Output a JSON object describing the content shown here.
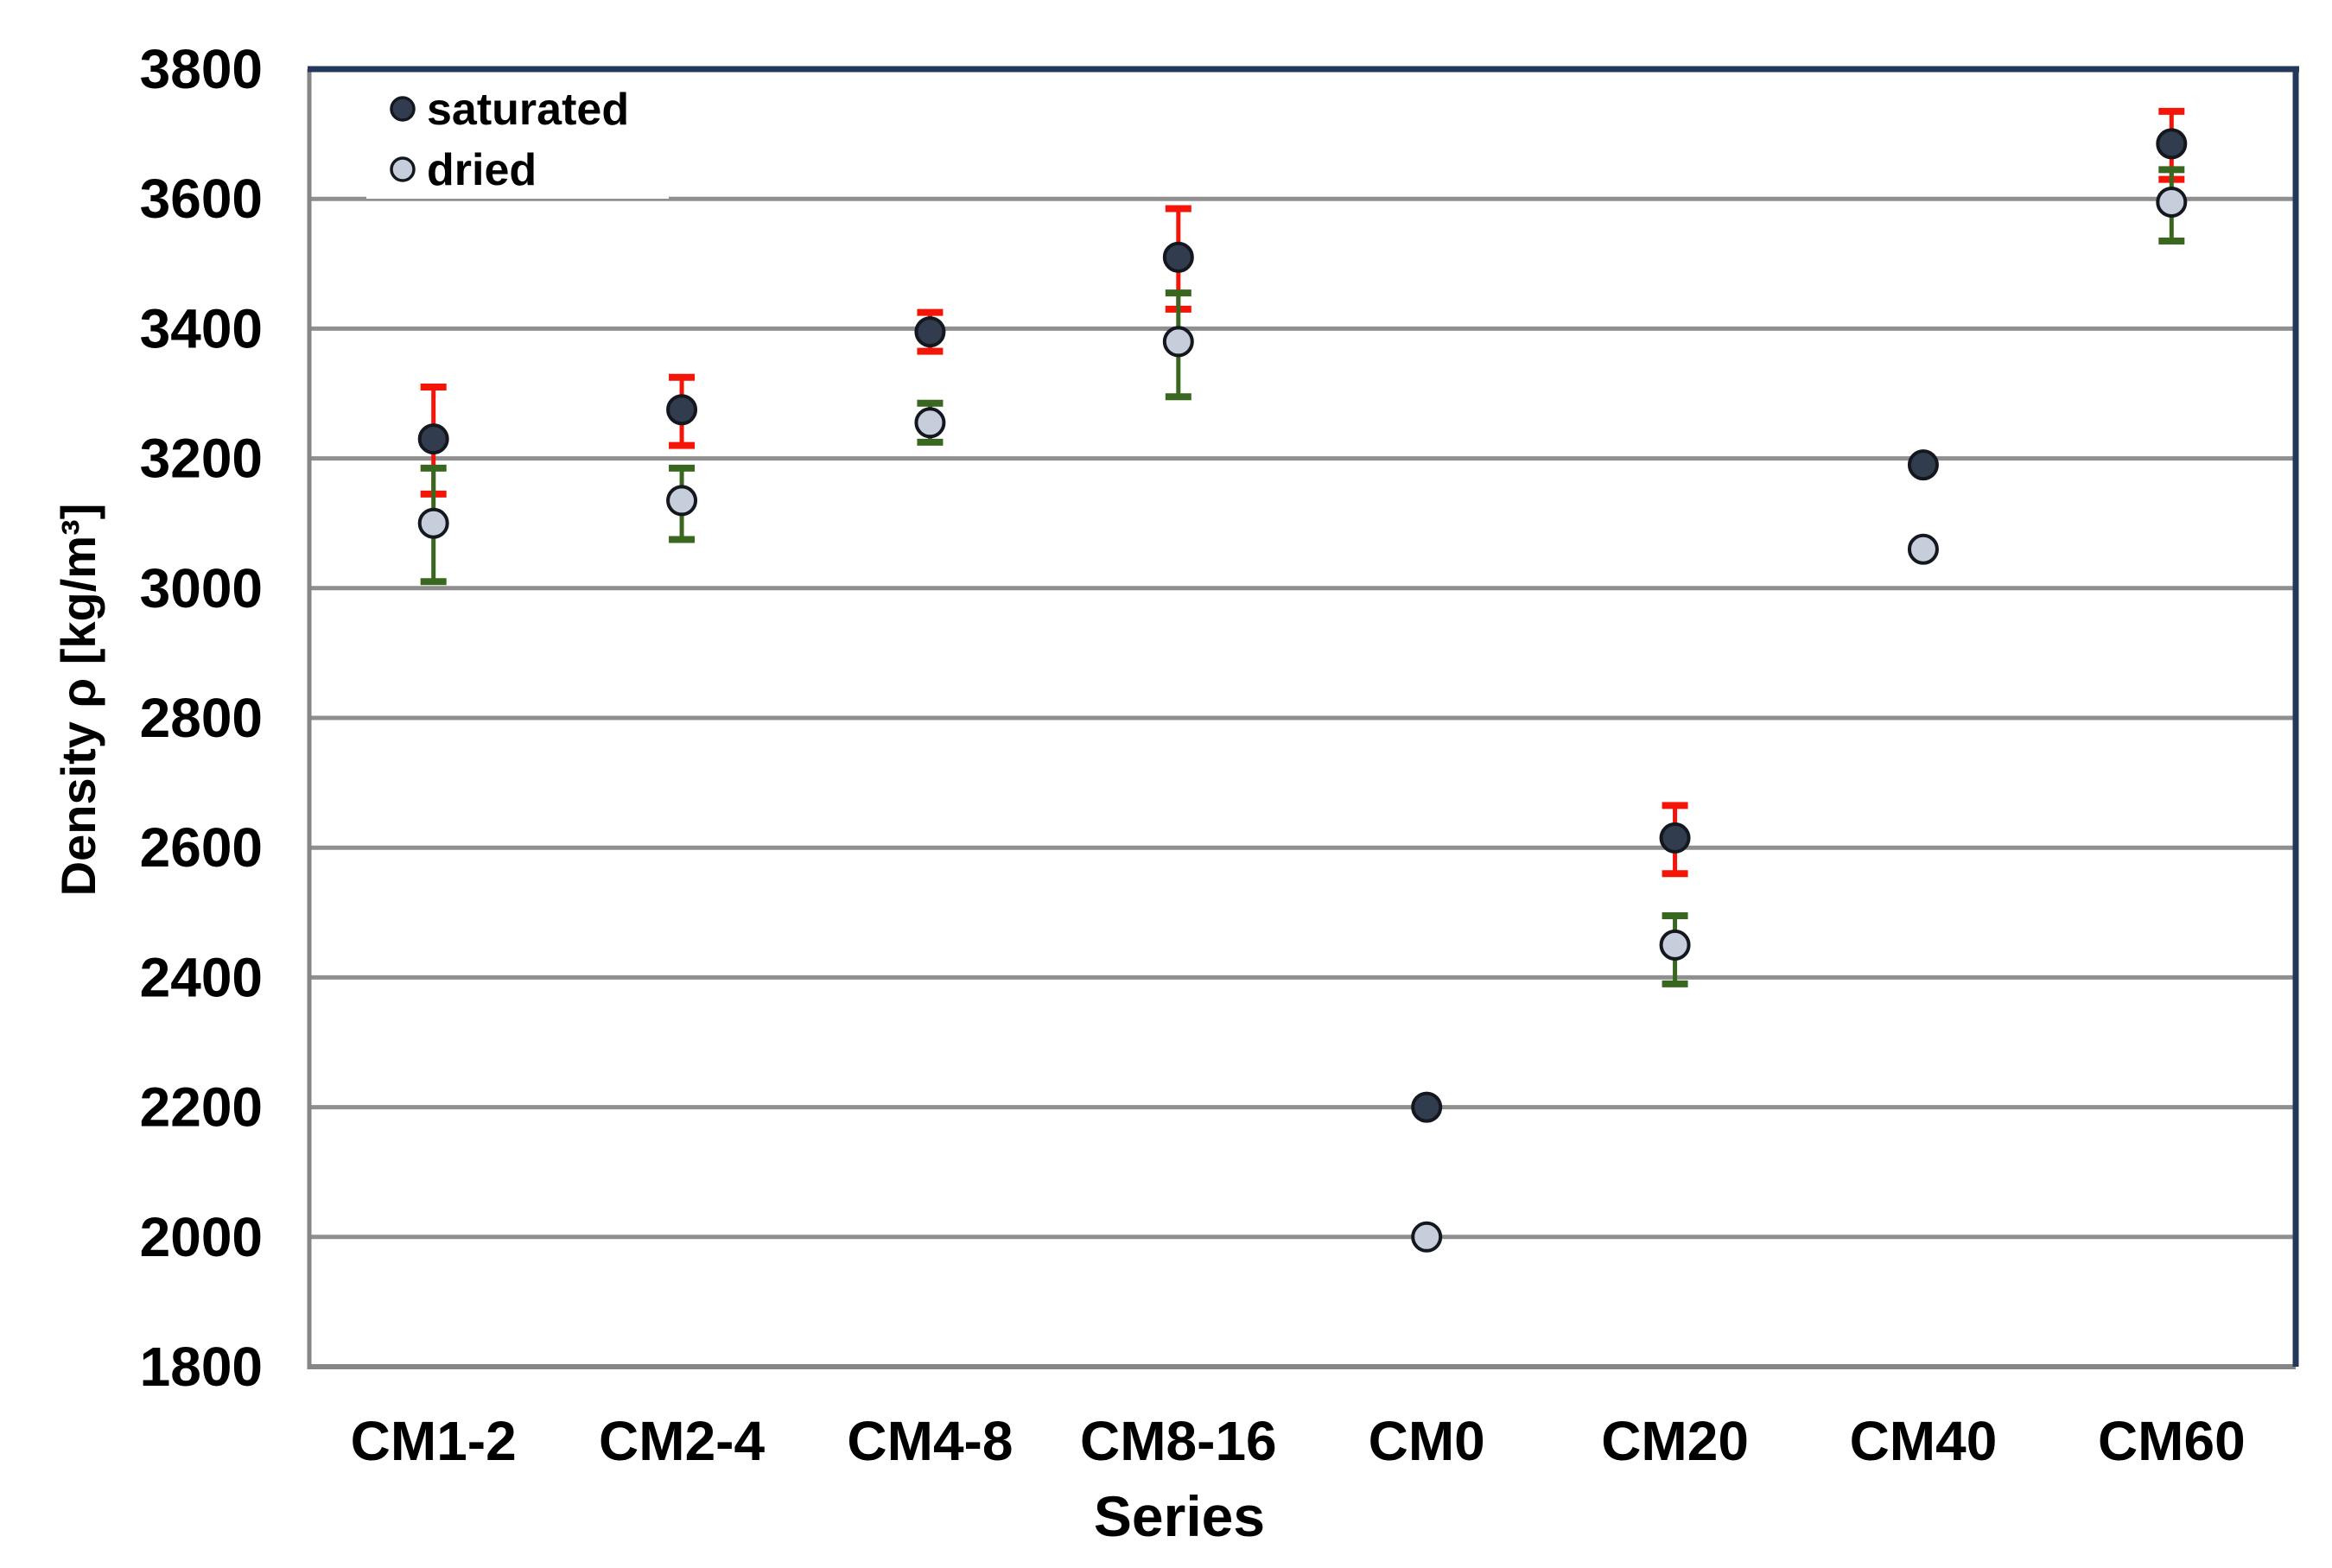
{
  "chart_data": {
    "type": "scatter",
    "title": "",
    "xlabel": "Series",
    "ylabel": "Density ρ [kg/m³]",
    "ylim": [
      1800,
      3800
    ],
    "ytick_step": 200,
    "yticks": [
      1800,
      2000,
      2200,
      2400,
      2600,
      2800,
      3000,
      3200,
      3400,
      3600,
      3800
    ],
    "grid": true,
    "legend_position": "top-left-inside",
    "categories": [
      "CM1-2",
      "CM2-4",
      "CM4-8",
      "CM8-16",
      "CM0",
      "CM20",
      "CM40",
      "CM60"
    ],
    "series": [
      {
        "name": "saturated",
        "marker": "circle",
        "marker_fill": "#313D4E",
        "error_color": "#F51508",
        "points": [
          {
            "category": "CM1-2",
            "value": 3230,
            "err_plus": 80,
            "err_minus": 85
          },
          {
            "category": "CM2-4",
            "value": 3275,
            "err_plus": 50,
            "err_minus": 55
          },
          {
            "category": "CM4-8",
            "value": 3395,
            "err_plus": 30,
            "err_minus": 30
          },
          {
            "category": "CM8-16",
            "value": 3510,
            "err_plus": 75,
            "err_minus": 80
          },
          {
            "category": "CM0",
            "value": 2200,
            "err_plus": 0,
            "err_minus": 0
          },
          {
            "category": "CM20",
            "value": 2615,
            "err_plus": 50,
            "err_minus": 55
          },
          {
            "category": "CM40",
            "value": 3190,
            "err_plus": 0,
            "err_minus": 0
          },
          {
            "category": "CM60",
            "value": 3685,
            "err_plus": 50,
            "err_minus": 55
          }
        ]
      },
      {
        "name": "dried",
        "marker": "circle",
        "marker_fill": "#C6CEDC",
        "error_color": "#3A671F",
        "points": [
          {
            "category": "CM1-2",
            "value": 3100,
            "err_plus": 85,
            "err_minus": 90
          },
          {
            "category": "CM2-4",
            "value": 3135,
            "err_plus": 50,
            "err_minus": 60
          },
          {
            "category": "CM4-8",
            "value": 3255,
            "err_plus": 30,
            "err_minus": 30
          },
          {
            "category": "CM8-16",
            "value": 3380,
            "err_plus": 75,
            "err_minus": 85
          },
          {
            "category": "CM0",
            "value": 2000,
            "err_plus": 0,
            "err_minus": 0
          },
          {
            "category": "CM20",
            "value": 2450,
            "err_plus": 45,
            "err_minus": 60
          },
          {
            "category": "CM40",
            "value": 3060,
            "err_plus": 0,
            "err_minus": 0
          },
          {
            "category": "CM60",
            "value": 3595,
            "err_plus": 50,
            "err_minus": 60
          }
        ]
      }
    ],
    "colors": {
      "marker_stroke": "#14181E",
      "gridline": "#8F8F8F",
      "axis_line": "#868686",
      "plot_border": "#24385B",
      "background": "#FFFFFF",
      "text": "#000000"
    }
  }
}
